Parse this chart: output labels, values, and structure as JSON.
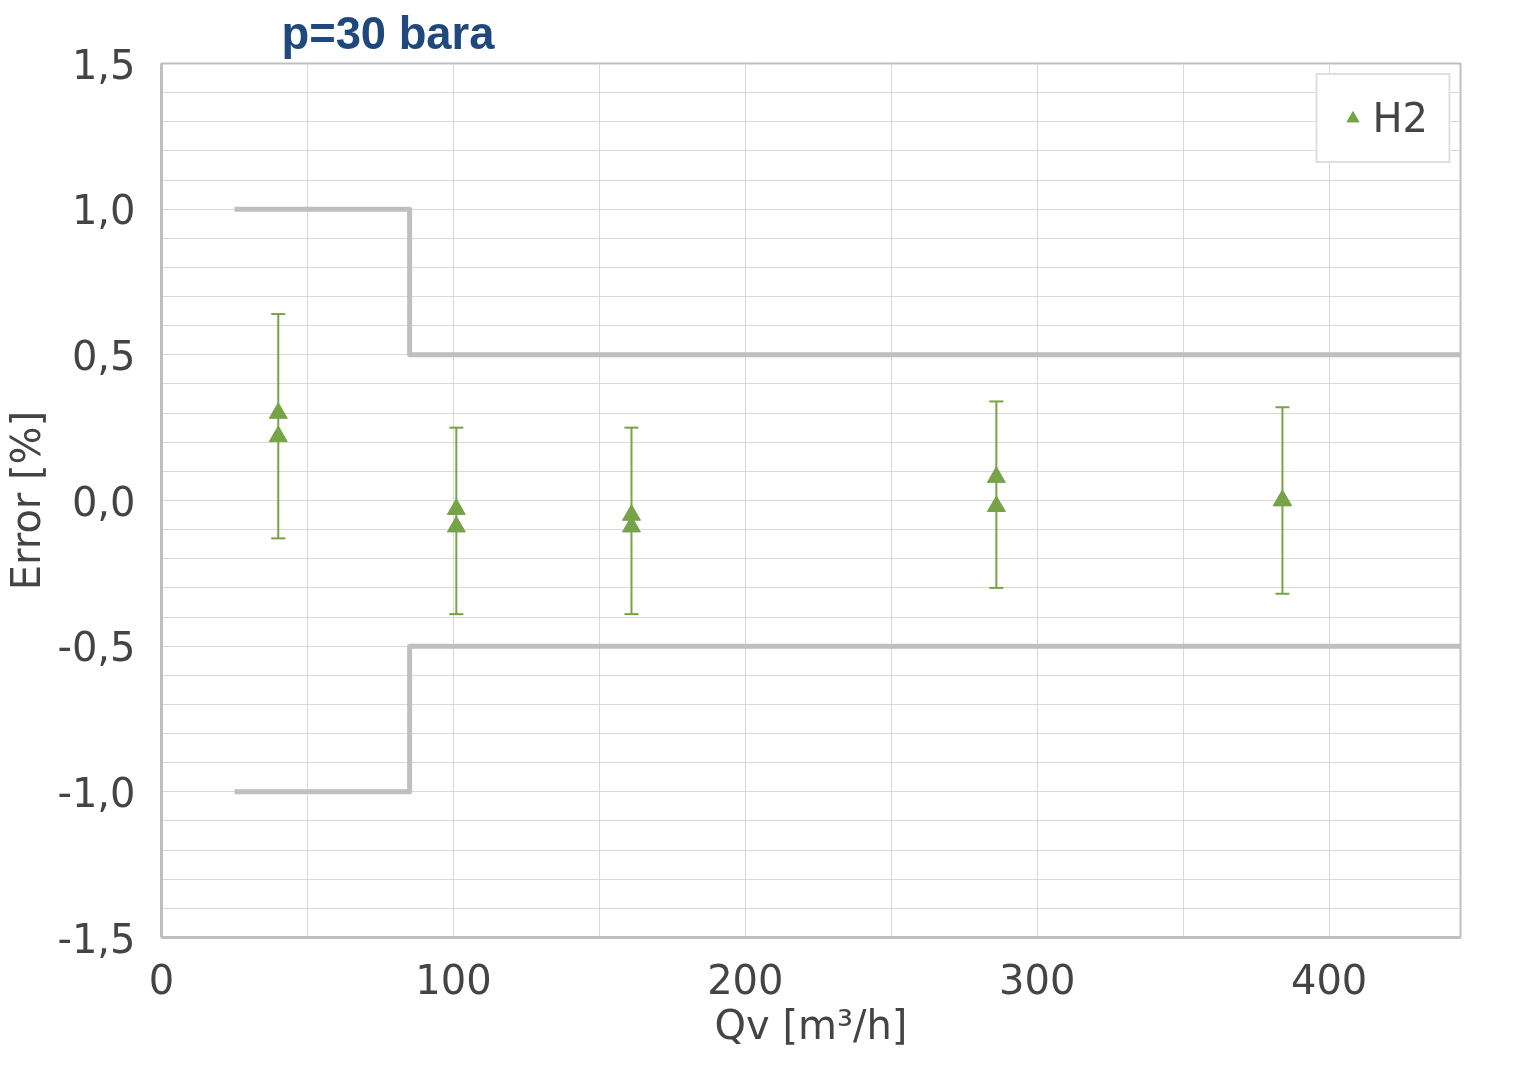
{
  "chart_data": {
    "type": "scatter",
    "title": "p=30 bara",
    "xlabel": "Qv [m³/h]",
    "ylabel": "Error [%]",
    "xlim": [
      0,
      445
    ],
    "ylim": [
      -1.5,
      1.5
    ],
    "xticks": [
      0,
      {
        "value": 50,
        "label": null
      },
      100,
      {
        "value": 150,
        "label": null
      },
      200,
      {
        "value": 250,
        "label": null
      },
      300,
      {
        "value": 350,
        "label": null
      },
      400
    ],
    "yticks": [
      {
        "value": -1.5,
        "label": "-1,5"
      },
      {
        "value": -1.4,
        "label": null
      },
      {
        "value": -1.3,
        "label": null
      },
      {
        "value": -1.2,
        "label": null
      },
      {
        "value": -1.1,
        "label": null
      },
      {
        "value": -1.0,
        "label": "-1,0"
      },
      {
        "value": -0.9,
        "label": null
      },
      {
        "value": -0.8,
        "label": null
      },
      {
        "value": -0.7,
        "label": null
      },
      {
        "value": -0.6,
        "label": null
      },
      {
        "value": -0.5,
        "label": "-0,5"
      },
      {
        "value": -0.4,
        "label": null
      },
      {
        "value": -0.3,
        "label": null
      },
      {
        "value": -0.2,
        "label": null
      },
      {
        "value": -0.1,
        "label": null
      },
      {
        "value": 0,
        "label": "0,0"
      },
      {
        "value": 0.1,
        "label": null
      },
      {
        "value": 0.2,
        "label": null
      },
      {
        "value": 0.3,
        "label": null
      },
      {
        "value": 0.4,
        "label": null
      },
      {
        "value": 0.5,
        "label": "0,5"
      },
      {
        "value": 0.6,
        "label": null
      },
      {
        "value": 0.7,
        "label": null
      },
      {
        "value": 0.8,
        "label": null
      },
      {
        "value": 0.9,
        "label": null
      },
      {
        "value": 1.0,
        "label": "1,0"
      },
      {
        "value": 1.1,
        "label": null
      },
      {
        "value": 1.2,
        "label": null
      },
      {
        "value": 1.3,
        "label": null
      },
      {
        "value": 1.4,
        "label": null
      },
      {
        "value": 1.5,
        "label": "1,5"
      }
    ],
    "grid": true,
    "legend": "top right",
    "series": [
      {
        "marker": "triangle",
        "name": "H2",
        "color": "#77a347",
        "x": [
          40,
          40,
          101,
          101,
          161,
          161,
          286,
          286,
          384,
          384
        ],
        "values": [
          0.3,
          0.22,
          -0.03,
          -0.09,
          -0.05,
          -0.09,
          0.08,
          -0.02,
          0.0,
          0.0
        ],
        "errors": [
          [
            -0.13,
            0.64
          ],
          null,
          [
            -0.39,
            0.25
          ],
          null,
          [
            -0.39,
            0.25
          ],
          null,
          [
            -0.3,
            0.34
          ],
          null,
          [
            -0.32,
            0.32
          ],
          null
        ]
      },
      {
        "type": "line",
        "color": "#bfbfbf",
        "x": [
          25,
          85,
          85,
          445
        ],
        "values": [
          1.0,
          1.0,
          0.5,
          0.5
        ]
      },
      {
        "type": "line",
        "color": "#bfbfbf",
        "x": [
          25,
          85,
          85,
          445
        ],
        "values": [
          -1.0,
          -1.0,
          -0.5,
          -0.5
        ]
      }
    ]
  }
}
